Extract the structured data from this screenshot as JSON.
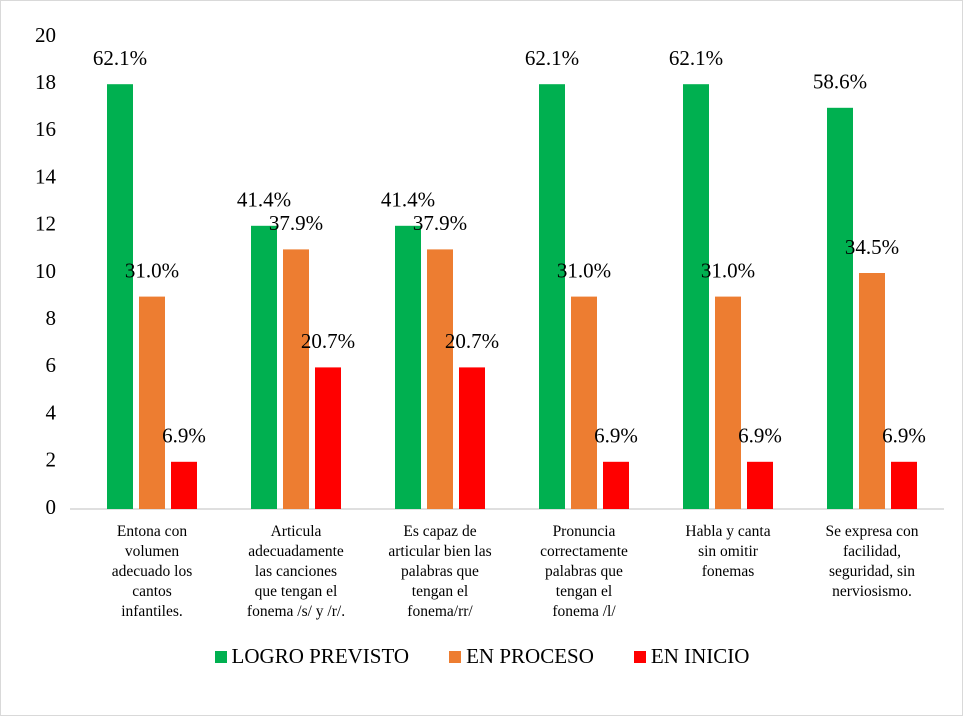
{
  "chart_data": {
    "type": "bar",
    "categories": [
      "Entona con\nvolumen\nadecuado los\ncantos\ninfantiles.",
      "Articula\nadecuadamente\nlas canciones\nque tengan el\nfonema /s/ y /r/.",
      "Es capaz de\narticular bien las\npalabras que\ntengan el\nfonema/rr/",
      "Pronuncia\ncorrectamente\npalabras que\ntengan el\nfonema /l/",
      "Habla y canta\nsin omitir\nfonemas",
      "Se expresa con\nfacilidad,\nseguridad, sin\nnerviosismo."
    ],
    "series": [
      {
        "name": "LOGRO PREVISTO",
        "color": "#00b050",
        "values": [
          18,
          12,
          12,
          18,
          18,
          17
        ],
        "percent_labels": [
          "62.1%",
          "41.4%",
          "41.4%",
          "62.1%",
          "62.1%",
          "58.6%"
        ]
      },
      {
        "name": "EN PROCESO",
        "color": "#ed7d31",
        "values": [
          9,
          11,
          11,
          9,
          9,
          10
        ],
        "percent_labels": [
          "31.0%",
          "37.9%",
          "37.9%",
          "31.0%",
          "31.0%",
          "34.5%"
        ]
      },
      {
        "name": "EN INICIO",
        "color": "#ff0000",
        "values": [
          2,
          6,
          6,
          2,
          2,
          2
        ],
        "percent_labels": [
          "6.9%",
          "20.7%",
          "20.7%",
          "6.9%",
          "6.9%",
          "6.9%"
        ]
      }
    ],
    "ylim": [
      0,
      20
    ],
    "yticks": [
      0,
      2,
      4,
      6,
      8,
      10,
      12,
      14,
      16,
      18,
      20
    ],
    "grid": false,
    "legend": "bottom"
  }
}
